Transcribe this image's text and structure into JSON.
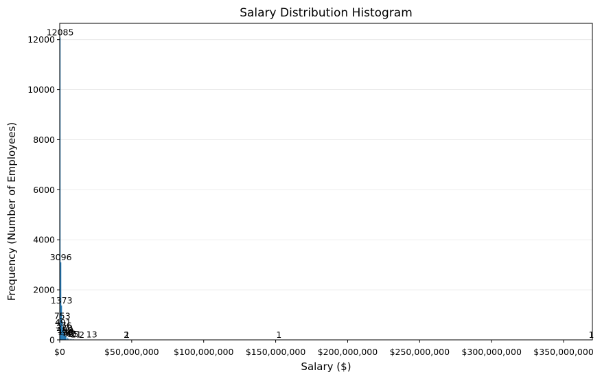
{
  "chart_data": {
    "type": "bar",
    "title": "Salary Distribution Histogram",
    "xlabel": "Salary ($)",
    "ylabel": "Frequency (Number of Employees)",
    "xlim": [
      0,
      370000000
    ],
    "ylim": [
      0,
      12650
    ],
    "x_ticks": [
      0,
      50000000,
      100000000,
      150000000,
      200000000,
      250000000,
      300000000,
      350000000
    ],
    "x_tick_labels": [
      "$0",
      "$50,000,000",
      "$100,000,000",
      "$150,000,000",
      "$200,000,000",
      "$250,000,000",
      "$300,000,000",
      "$350,000,000"
    ],
    "y_ticks": [
      0,
      2000,
      4000,
      6000,
      8000,
      10000,
      12000
    ],
    "y_tick_labels": [
      "0",
      "2000",
      "4000",
      "6000",
      "8000",
      "10000",
      "12000"
    ],
    "grid": "y",
    "legend": "none",
    "bar_color": "#1f77b4",
    "bins": [
      {
        "x": 0,
        "value": 12085,
        "label": "12085"
      },
      {
        "x": 500000,
        "value": 3096,
        "label": "3096"
      },
      {
        "x": 1000000,
        "value": 1373,
        "label": "1373"
      },
      {
        "x": 1500000,
        "value": 753,
        "label": "753"
      },
      {
        "x": 2000000,
        "value": 491,
        "label": "491"
      },
      {
        "x": 2500000,
        "value": 376,
        "label": "376"
      },
      {
        "x": 3000000,
        "value": 270,
        "label": "270"
      },
      {
        "x": 3500000,
        "value": 190,
        "label": "190"
      },
      {
        "x": 4000000,
        "value": 130,
        "label": "130"
      },
      {
        "x": 5000000,
        "value": 90,
        "label": "90"
      },
      {
        "x": 6000000,
        "value": 60,
        "label": "60"
      },
      {
        "x": 7500000,
        "value": 40,
        "label": "40"
      },
      {
        "x": 9000000,
        "value": 25,
        "label": "25"
      },
      {
        "x": 11000000,
        "value": 11,
        "label": "11"
      },
      {
        "x": 15000000,
        "value": 2,
        "label": "2"
      },
      {
        "x": 22000000,
        "value": 13,
        "label": "13"
      },
      {
        "x": 46000000,
        "value": 2,
        "label": "2"
      },
      {
        "x": 46500000,
        "value": 1,
        "label": "1"
      },
      {
        "x": 152000000,
        "value": 1,
        "label": "1"
      },
      {
        "x": 369000000,
        "value": 1,
        "label": "1"
      }
    ]
  }
}
